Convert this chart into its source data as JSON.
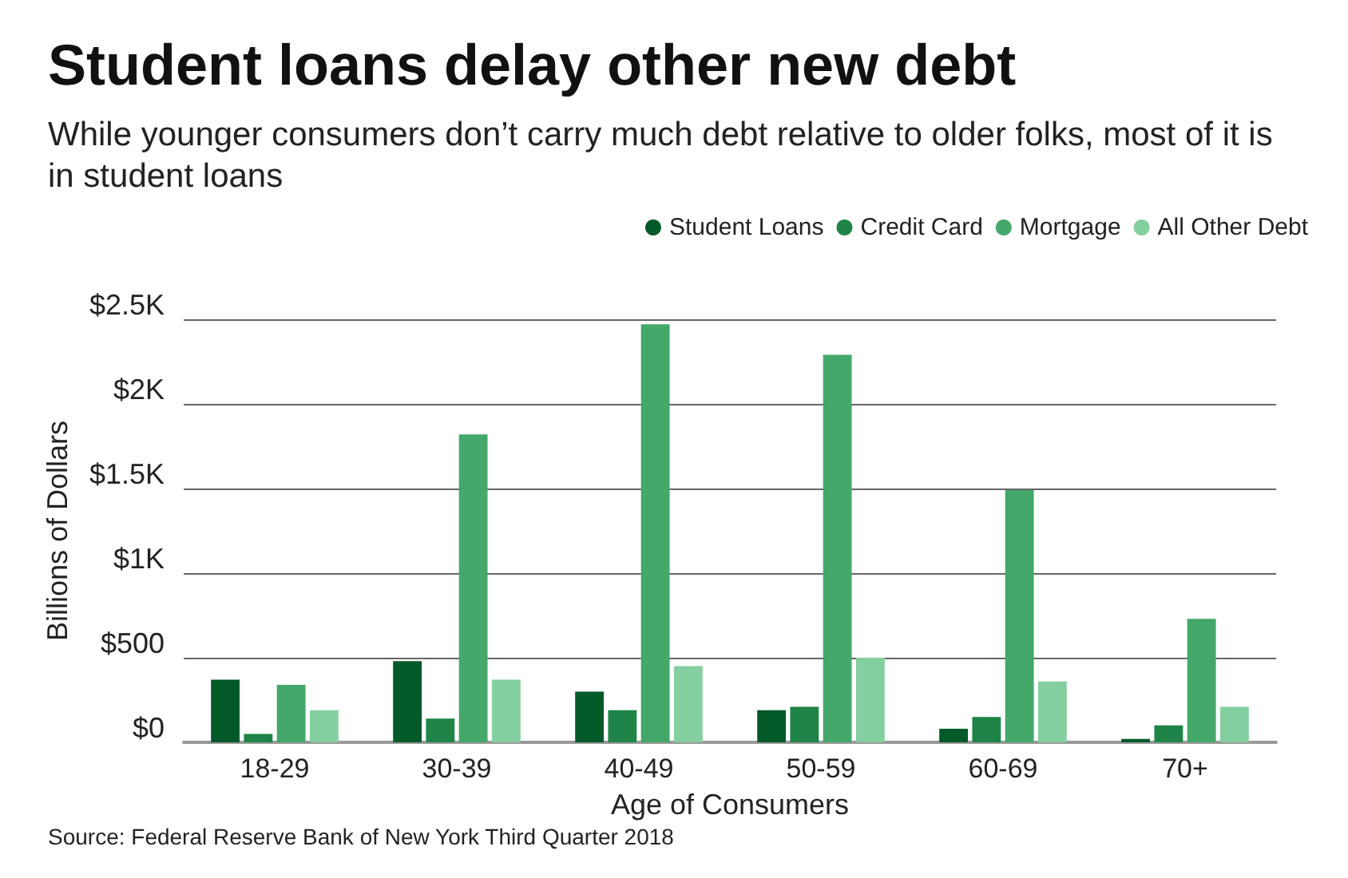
{
  "chart_data": {
    "type": "bar",
    "title": "Student loans delay other new debt",
    "subtitle": "While younger consumers don’t carry much debt relative to older folks, most of it is in student loans",
    "xlabel": "Age of Consumers",
    "ylabel": "Billions of Dollars",
    "categories": [
      "18-29",
      "30-39",
      "40-49",
      "50-59",
      "60-69",
      "70+"
    ],
    "series": [
      {
        "name": "Student Loans",
        "color": "#035a29",
        "values": [
          370,
          480,
          300,
          190,
          80,
          20
        ]
      },
      {
        "name": "Credit Card",
        "color": "#1f8447",
        "values": [
          50,
          140,
          190,
          210,
          150,
          100
        ]
      },
      {
        "name": "Mortgage",
        "color": "#43a86a",
        "values": [
          340,
          1820,
          2470,
          2290,
          1490,
          730
        ]
      },
      {
        "name": "All Other Debt",
        "color": "#84cf9f",
        "values": [
          190,
          370,
          450,
          500,
          360,
          210
        ]
      }
    ],
    "ylim": [
      0,
      2500
    ],
    "yticks": [
      {
        "value": 0,
        "label": "$0"
      },
      {
        "value": 500,
        "label": "$500"
      },
      {
        "value": 1000,
        "label": "$1K"
      },
      {
        "value": 1500,
        "label": "$1.5K"
      },
      {
        "value": 2000,
        "label": "$2K"
      },
      {
        "value": 2500,
        "label": "$2.5K"
      }
    ],
    "grid": "y",
    "legend": "top right",
    "annotations": [
      "Source: Federal Reserve Bank of New York Third Quarter 2018"
    ]
  }
}
